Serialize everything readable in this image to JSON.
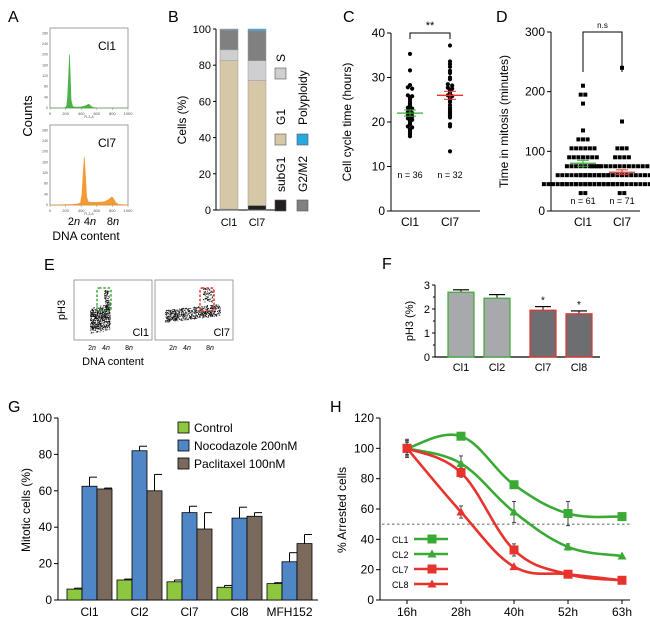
{
  "panel_labels": [
    "A",
    "B",
    "C",
    "D",
    "E",
    "F",
    "G",
    "H"
  ],
  "chart_data": [
    {
      "panel": "A",
      "type": "area",
      "title": "",
      "xlabel": "DNA content",
      "ylabel": "Counts",
      "inner_xlabel": "FL3-A",
      "inner_ylabel": "Counts",
      "xticks": [
        "0",
        "200",
        "400",
        "600",
        "800",
        "1000"
      ],
      "yticks": [
        "0",
        "40",
        "80",
        "120",
        "160",
        "200",
        "240",
        "280"
      ],
      "xlim": [
        0,
        1000
      ],
      "ylim": [
        0,
        300
      ],
      "ploidy_labels": [
        "2n",
        "4n",
        "8n"
      ],
      "series": [
        {
          "name": "Cl1",
          "color": "#3aaa35",
          "x": [
            0,
            180,
            200,
            215,
            225,
            240,
            250,
            260,
            270,
            290,
            320,
            400,
            450,
            480,
            500,
            520,
            550,
            600,
            1000
          ],
          "y": [
            0,
            0,
            2,
            10,
            40,
            130,
            200,
            120,
            30,
            6,
            3,
            4,
            8,
            12,
            14,
            8,
            2,
            0,
            0
          ]
        },
        {
          "name": "Cl7",
          "color": "#f5901e",
          "x": [
            0,
            300,
            360,
            390,
            410,
            425,
            440,
            455,
            470,
            490,
            520,
            600,
            700,
            740,
            770,
            790,
            810,
            840,
            880,
            1000
          ],
          "y": [
            0,
            2,
            4,
            8,
            40,
            120,
            180,
            110,
            30,
            12,
            10,
            10,
            12,
            18,
            25,
            30,
            26,
            10,
            2,
            0
          ]
        }
      ]
    },
    {
      "panel": "B",
      "type": "bar",
      "stacked": true,
      "ylabel": "Cells (%)",
      "ylim": [
        0,
        100
      ],
      "yticks": [
        "0",
        "20",
        "40",
        "60",
        "80",
        "100"
      ],
      "categories": [
        "Cl1",
        "Cl7"
      ],
      "series": [
        {
          "name": "subG1",
          "color": "#231f20",
          "values": [
            0.5,
            2.5
          ]
        },
        {
          "name": "G1",
          "color": "#d6c7a6",
          "values": [
            82,
            69
          ]
        },
        {
          "name": "S",
          "color": "#cfcfd1",
          "values": [
            6,
            11
          ]
        },
        {
          "name": "G2/M2",
          "color": "#808080",
          "values": [
            11,
            16.5
          ]
        },
        {
          "name": "Polyploidy",
          "color": "#29a8e0",
          "values": [
            0.5,
            1
          ]
        }
      ],
      "legend": [
        {
          "label": "S",
          "color": "#cfcfd1"
        },
        {
          "label": "G1",
          "color": "#d6c7a6"
        },
        {
          "label": "subG1",
          "color": "#231f20"
        },
        {
          "label": "Polyploidy",
          "color": "#29a8e0"
        },
        {
          "label": "G2/M2",
          "color": "#808080"
        }
      ]
    },
    {
      "panel": "C",
      "type": "scatter",
      "ylabel": "Cell cycle time (hours)",
      "ylim": [
        0,
        40
      ],
      "yticks": [
        "0",
        "10",
        "20",
        "30",
        "40"
      ],
      "categories": [
        "Cl1",
        "Cl7"
      ],
      "significance": "**",
      "groups": [
        {
          "name": "Cl1",
          "n_label": "n = 36",
          "mean": 22,
          "sem": 0.7,
          "mean_color": "#3aaa35",
          "values": [
            35.3,
            31.6,
            28.3,
            27.8,
            27.5,
            26,
            25.8,
            25.6,
            25.3,
            25,
            24.5,
            24.2,
            23.8,
            23.5,
            23.2,
            23,
            22.8,
            22.5,
            22.2,
            22,
            21.8,
            21.5,
            21.2,
            21,
            20.8,
            20.5,
            20.2,
            19.8,
            19.5,
            19,
            18.8,
            18.3,
            18,
            17.6,
            17.3,
            16.8
          ]
        },
        {
          "name": "Cl7",
          "n_label": "n = 32",
          "mean": 26,
          "sem": 0.9,
          "mean_color": "#e8322c",
          "values": [
            37.2,
            33.6,
            33,
            32.4,
            31.5,
            31,
            30,
            29.6,
            28.5,
            28.2,
            27.7,
            27.5,
            27.2,
            27,
            26.6,
            26.2,
            26,
            25.8,
            25.5,
            25,
            24.5,
            23.8,
            23.2,
            22.8,
            22.4,
            22,
            21.6,
            21.3,
            21,
            19.5,
            19,
            13.4
          ]
        }
      ]
    },
    {
      "panel": "D",
      "type": "scatter",
      "ylabel": "Time in mitosis (minutes)",
      "ylim": [
        0,
        300
      ],
      "yticks": [
        "0",
        "100",
        "200",
        "300"
      ],
      "categories": [
        "Cl1",
        "Cl7"
      ],
      "significance": "n.s",
      "groups": [
        {
          "name": "Cl1",
          "n_label": "n = 61",
          "mean": 80,
          "sem": 5,
          "mean_color": "#3aaa35",
          "values": [
            210,
            195,
            195,
            180,
            135,
            120,
            120,
            120,
            105,
            105,
            105,
            105,
            105,
            105,
            90,
            90,
            90,
            90,
            90,
            90,
            90,
            75,
            75,
            75,
            75,
            75,
            75,
            75,
            75,
            60,
            60,
            60,
            60,
            60,
            60,
            60,
            60,
            60,
            60,
            60,
            60,
            45,
            45,
            45,
            45,
            45,
            45,
            45,
            45,
            45,
            45,
            45,
            45,
            45,
            45,
            45,
            45,
            45,
            45,
            30,
            30
          ]
        },
        {
          "name": "Cl7",
          "n_label": "n = 71",
          "mean": 65,
          "sem": 4,
          "mean_color": "#e8322c",
          "values": [
            240,
            150,
            105,
            105,
            105,
            90,
            90,
            90,
            90,
            75,
            75,
            75,
            75,
            75,
            75,
            75,
            75,
            75,
            75,
            75,
            75,
            75,
            75,
            60,
            60,
            60,
            60,
            60,
            60,
            60,
            60,
            60,
            60,
            60,
            60,
            60,
            60,
            60,
            60,
            60,
            60,
            60,
            45,
            45,
            45,
            45,
            45,
            45,
            45,
            45,
            45,
            45,
            45,
            45,
            45,
            45,
            45,
            45,
            45,
            45,
            45,
            45,
            45,
            45,
            45,
            45,
            45,
            45,
            45,
            30,
            30
          ]
        }
      ]
    },
    {
      "panel": "E",
      "type": "scatter",
      "xlabel": "DNA content",
      "ylabel": "pH3",
      "xticks": [
        "2n",
        "4n",
        "8n"
      ],
      "plots": [
        {
          "name": "Cl1",
          "gate_color": "#3aaa35"
        },
        {
          "name": "Cl7",
          "gate_color": "#e8322c"
        }
      ]
    },
    {
      "panel": "F",
      "type": "bar",
      "ylabel": "pH3 (%)",
      "ylim": [
        0,
        3
      ],
      "yticks": [
        "0",
        "1",
        "2",
        "3"
      ],
      "categories": [
        "Cl1",
        "Cl2",
        "Cl7",
        "Cl8"
      ],
      "values": [
        2.7,
        2.45,
        1.95,
        1.8
      ],
      "errors": [
        0.1,
        0.15,
        0.15,
        0.12
      ],
      "fill_colors": [
        "#a7a9ac",
        "#a7a9ac",
        "#6d6e71",
        "#6d6e71"
      ],
      "edge_colors": [
        "#3aaa35",
        "#3aaa35",
        "#e8322c",
        "#e8322c"
      ],
      "annotations": [
        "",
        "",
        "*",
        "*"
      ]
    },
    {
      "panel": "G",
      "type": "bar",
      "ylabel": "Mitotic cells (%)",
      "ylim": [
        0,
        100
      ],
      "yticks": [
        "0",
        "20",
        "40",
        "60",
        "80",
        "100"
      ],
      "categories": [
        "Cl1",
        "Cl2",
        "Cl7",
        "Cl8",
        "MFH152"
      ],
      "legend_position": "top-right",
      "series": [
        {
          "name": "Control",
          "color": "#8dc63f",
          "values": [
            6,
            11,
            10,
            7,
            9
          ],
          "errors": [
            0.5,
            0.5,
            1,
            1,
            0.5
          ]
        },
        {
          "name": "Nocodazole 200nM",
          "color": "#4f86c6",
          "values": [
            62.5,
            82,
            48,
            45,
            21
          ],
          "errors": [
            5,
            2.5,
            3.5,
            6,
            5
          ]
        },
        {
          "name": "Paclitaxel 100nM",
          "color": "#7a6a5e",
          "values": [
            61,
            60,
            39,
            46,
            31
          ],
          "errors": [
            0.5,
            9,
            9,
            2,
            5
          ]
        }
      ]
    },
    {
      "panel": "H",
      "type": "line",
      "ylabel": "% Arrested cells",
      "ylim": [
        0,
        120
      ],
      "yticks": [
        "0",
        "20",
        "40",
        "60",
        "80",
        "100",
        "120"
      ],
      "categories": [
        "16h",
        "28h",
        "40h",
        "52h",
        "63h"
      ],
      "reference_line": 50,
      "legend_position": "bottom-left",
      "series": [
        {
          "name": "CL1",
          "color": "#3aaa35",
          "marker": "square",
          "values": [
            100,
            108,
            76,
            57,
            55
          ],
          "errors": [
            6,
            1,
            2,
            8,
            2
          ]
        },
        {
          "name": "CL2",
          "color": "#3aaa35",
          "marker": "triangle",
          "values": [
            100,
            90,
            58,
            35,
            29
          ],
          "errors": [
            5,
            5,
            7,
            2,
            1
          ]
        },
        {
          "name": "CL7",
          "color": "#e8322c",
          "marker": "square",
          "values": [
            100,
            84,
            33,
            17,
            13
          ],
          "errors": [
            5,
            3,
            4,
            2,
            2
          ]
        },
        {
          "name": "CL8",
          "color": "#e8322c",
          "marker": "triangle",
          "values": [
            100,
            58,
            22,
            17,
            13
          ],
          "errors": [
            4,
            4,
            1,
            1,
            1
          ]
        }
      ]
    }
  ]
}
